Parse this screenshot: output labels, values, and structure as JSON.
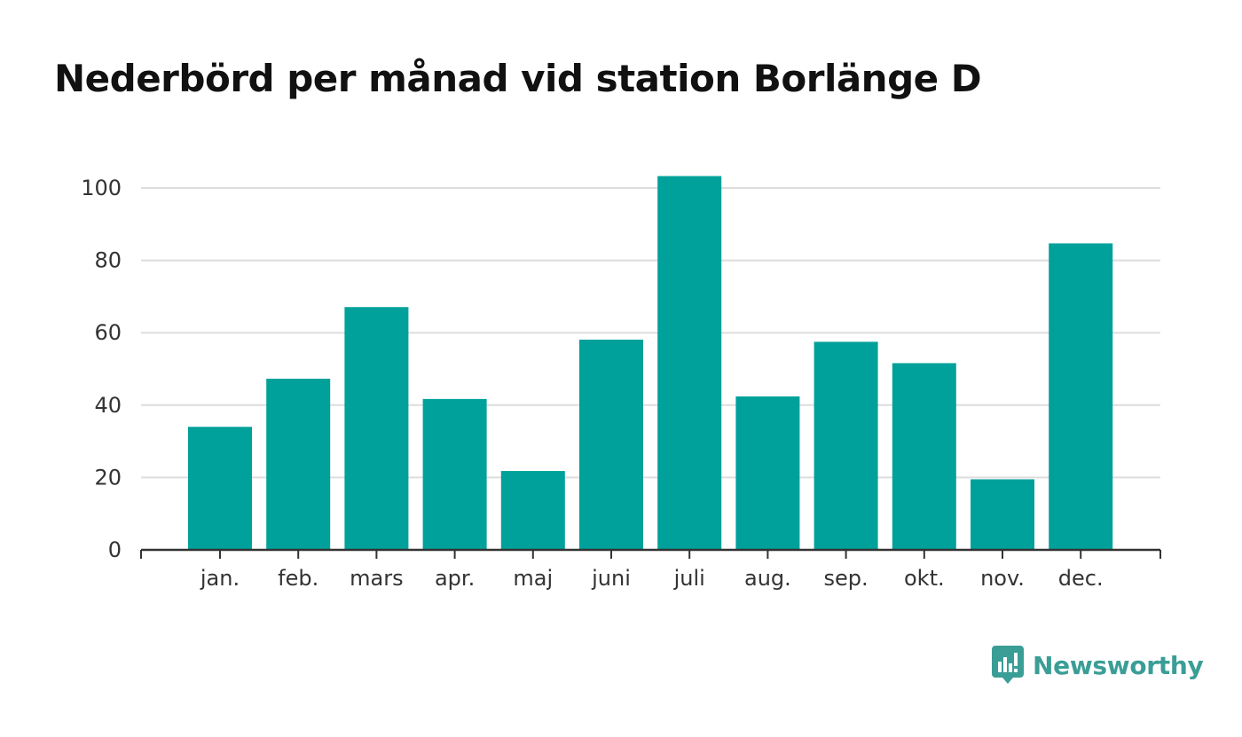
{
  "title": "Nederbörd per månad vid station Borlänge D",
  "brand": {
    "name": "Newsworthy",
    "color": "#3a9e96",
    "icon": "bar-chart-speech-bubble-icon"
  },
  "colors": {
    "bar": "#00a19a",
    "grid": "#dddddd",
    "axis": "#333333"
  },
  "chart_data": {
    "type": "bar",
    "title": "Nederbörd per månad vid station Borlänge D",
    "xlabel": "",
    "ylabel": "",
    "categories": [
      "jan.",
      "feb.",
      "mars",
      "apr.",
      "maj",
      "juni",
      "juli",
      "aug.",
      "sep.",
      "okt.",
      "nov.",
      "dec."
    ],
    "values": [
      34,
      47.3,
      67.1,
      41.7,
      21.8,
      58.1,
      103.3,
      42.4,
      57.5,
      51.6,
      19.5,
      84.7
    ],
    "ylim": [
      0,
      100
    ],
    "yticks": [
      0,
      20,
      40,
      60,
      80,
      100
    ],
    "grid": true,
    "legend": "none"
  }
}
